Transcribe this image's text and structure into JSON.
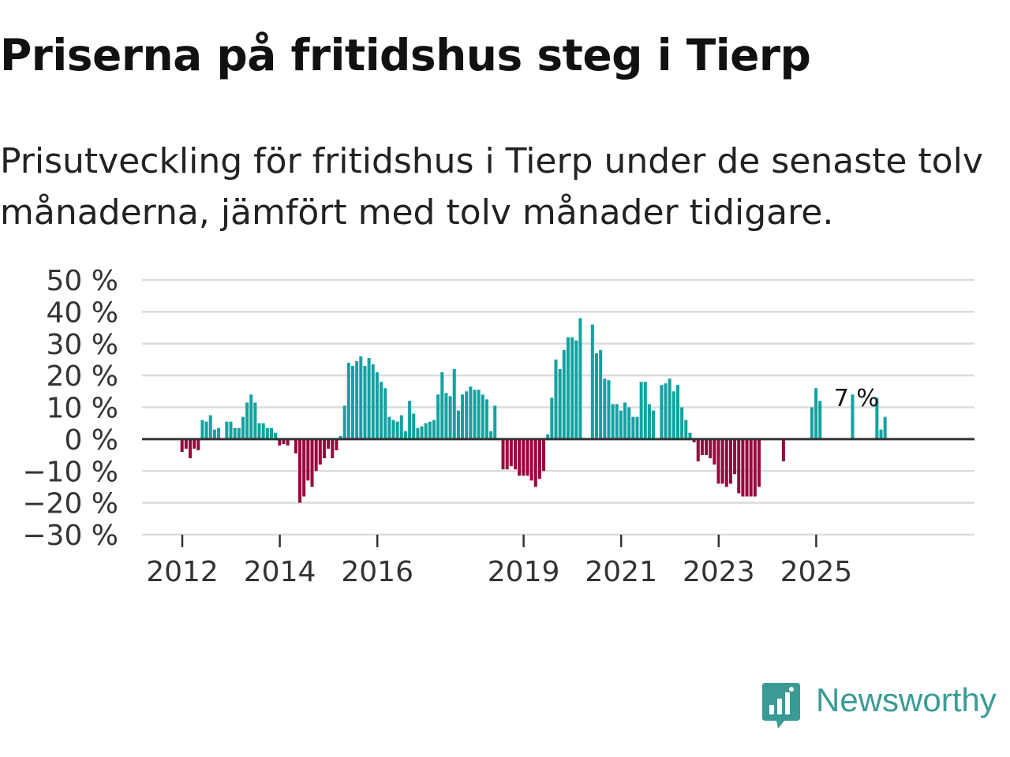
{
  "header": {
    "title": "Priserna på fritidshus steg i Tierp",
    "subtitle": "Prisutveckling för fritidshus i Tierp under de senaste tolv månaderna, jämfört med tolv månader tidigare."
  },
  "branding": {
    "name": "Newsworthy"
  },
  "colors": {
    "positive": "#13a2a1",
    "negative": "#99073e",
    "grid": "#dcdcdc",
    "zero": "#333333",
    "logo": "#3a9b95"
  },
  "chart_data": {
    "type": "bar",
    "ylim": [
      -30,
      50
    ],
    "yticks": [
      50,
      40,
      30,
      20,
      10,
      0,
      -10,
      -20,
      -30
    ],
    "ytick_labels": [
      "50 %",
      "40 %",
      "30 %",
      "20 %",
      "10 %",
      "0 %",
      "−10 %",
      "−20 %",
      "−30 %"
    ],
    "xticks": [
      {
        "label": "2012",
        "year": 2012
      },
      {
        "label": "2014",
        "year": 2014
      },
      {
        "label": "2016",
        "year": 2016
      },
      {
        "label": "2019",
        "year": 2019
      },
      {
        "label": "2021",
        "year": 2021
      },
      {
        "label": "2023",
        "year": 2023
      },
      {
        "label": "2025",
        "year": 2025
      }
    ],
    "start": {
      "year": 2012,
      "month": 1
    },
    "annotation": {
      "text": "7 %",
      "index": 166
    },
    "unit": "%",
    "values": [
      -4,
      -3,
      -6,
      -3,
      -3.5,
      6,
      5.5,
      7.5,
      3,
      3.5,
      null,
      5.5,
      5.5,
      3.5,
      3.5,
      7,
      11.5,
      14,
      11.5,
      5,
      5,
      3.5,
      3.5,
      2,
      -2,
      -1.5,
      -2,
      null,
      -4.5,
      -20,
      -18,
      -13,
      -15,
      -10,
      -8,
      -6,
      -3,
      -6,
      -3.5,
      1,
      10.5,
      24,
      23,
      24.5,
      26,
      23,
      25.5,
      23.5,
      21,
      18,
      16,
      7,
      6,
      5.5,
      7.5,
      2.5,
      12,
      8,
      3.5,
      4,
      5,
      5.5,
      6,
      14,
      21,
      14.5,
      13.5,
      22,
      9,
      14,
      15,
      16.5,
      15.5,
      15.5,
      14,
      12.5,
      2.5,
      10.5,
      null,
      -9.5,
      -9.5,
      -8.5,
      -9.5,
      -11.5,
      -11.5,
      -11.5,
      -13,
      -15,
      -12.5,
      -10,
      1.5,
      13,
      25,
      22,
      28,
      32,
      32,
      31,
      38,
      null,
      null,
      36,
      27,
      28,
      19,
      18.5,
      11,
      11,
      9,
      11.5,
      10,
      7,
      7,
      18,
      18,
      11,
      9,
      null,
      17,
      17.5,
      19,
      15,
      17,
      10,
      6,
      2,
      -1,
      -7,
      -5,
      -5,
      -6,
      -8,
      -14,
      -14,
      -15,
      -14,
      -11,
      -17,
      -18,
      -18,
      -18,
      -18,
      -15,
      null,
      null,
      null,
      null,
      null,
      -7,
      null,
      null,
      null,
      null,
      null,
      null,
      10,
      16,
      12,
      null,
      null,
      null,
      null,
      null,
      null,
      null,
      14,
      null,
      null,
      null,
      null,
      null,
      13,
      3,
      7
    ]
  }
}
